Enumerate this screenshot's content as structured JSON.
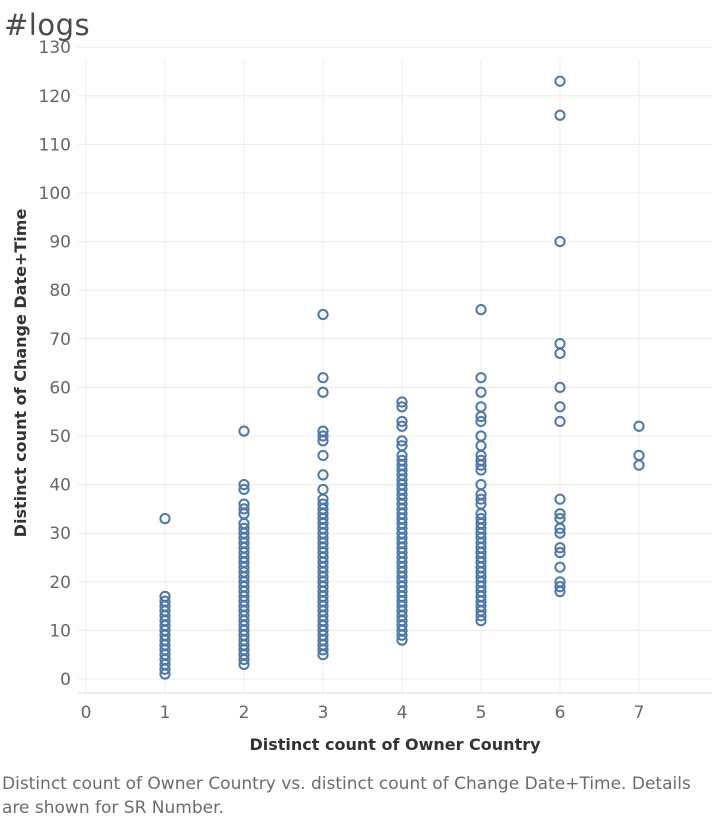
{
  "sheet": {
    "title": "#logs",
    "caption": "Distinct count of Owner Country vs. distinct count of Change Date+Time.  Details are shown for SR Number."
  },
  "colors": {
    "marker": "#4e79a7",
    "grid": "#ececec"
  },
  "chart_data": {
    "type": "scatter",
    "marker": "open-circle",
    "xlabel": "Distinct count of Owner Country",
    "ylabel": "Distinct count of Change Date+Time",
    "xlim": [
      0,
      8
    ],
    "ylim": [
      0,
      130
    ],
    "xticks": [
      0,
      1,
      2,
      3,
      4,
      5,
      6,
      7,
      8
    ],
    "yticks": [
      0,
      10,
      20,
      30,
      40,
      50,
      60,
      70,
      80,
      90,
      100,
      110,
      120,
      130
    ],
    "grid": true,
    "points": [
      {
        "x": 1,
        "y": 33
      },
      {
        "x": 1,
        "y": 17
      },
      {
        "x": 1,
        "y": 16
      },
      {
        "x": 1,
        "y": 15
      },
      {
        "x": 1,
        "y": 14
      },
      {
        "x": 1,
        "y": 13
      },
      {
        "x": 1,
        "y": 12
      },
      {
        "x": 1,
        "y": 11
      },
      {
        "x": 1,
        "y": 10
      },
      {
        "x": 1,
        "y": 9
      },
      {
        "x": 1,
        "y": 8
      },
      {
        "x": 1,
        "y": 7
      },
      {
        "x": 1,
        "y": 6
      },
      {
        "x": 1,
        "y": 5
      },
      {
        "x": 1,
        "y": 4
      },
      {
        "x": 1,
        "y": 3
      },
      {
        "x": 1,
        "y": 2
      },
      {
        "x": 1,
        "y": 1
      },
      {
        "x": 2,
        "y": 51
      },
      {
        "x": 2,
        "y": 40
      },
      {
        "x": 2,
        "y": 39
      },
      {
        "x": 2,
        "y": 36
      },
      {
        "x": 2,
        "y": 35
      },
      {
        "x": 2,
        "y": 34
      },
      {
        "x": 2,
        "y": 32
      },
      {
        "x": 2,
        "y": 31
      },
      {
        "x": 2,
        "y": 30
      },
      {
        "x": 2,
        "y": 29
      },
      {
        "x": 2,
        "y": 28
      },
      {
        "x": 2,
        "y": 27
      },
      {
        "x": 2,
        "y": 26
      },
      {
        "x": 2,
        "y": 25
      },
      {
        "x": 2,
        "y": 24
      },
      {
        "x": 2,
        "y": 23
      },
      {
        "x": 2,
        "y": 22
      },
      {
        "x": 2,
        "y": 21
      },
      {
        "x": 2,
        "y": 20
      },
      {
        "x": 2,
        "y": 19
      },
      {
        "x": 2,
        "y": 18
      },
      {
        "x": 2,
        "y": 17
      },
      {
        "x": 2,
        "y": 16
      },
      {
        "x": 2,
        "y": 15
      },
      {
        "x": 2,
        "y": 14
      },
      {
        "x": 2,
        "y": 13
      },
      {
        "x": 2,
        "y": 12
      },
      {
        "x": 2,
        "y": 11
      },
      {
        "x": 2,
        "y": 10
      },
      {
        "x": 2,
        "y": 9
      },
      {
        "x": 2,
        "y": 8
      },
      {
        "x": 2,
        "y": 7
      },
      {
        "x": 2,
        "y": 6
      },
      {
        "x": 2,
        "y": 5
      },
      {
        "x": 2,
        "y": 4
      },
      {
        "x": 2,
        "y": 3
      },
      {
        "x": 3,
        "y": 75
      },
      {
        "x": 3,
        "y": 62
      },
      {
        "x": 3,
        "y": 59
      },
      {
        "x": 3,
        "y": 51
      },
      {
        "x": 3,
        "y": 50
      },
      {
        "x": 3,
        "y": 49
      },
      {
        "x": 3,
        "y": 46
      },
      {
        "x": 3,
        "y": 42
      },
      {
        "x": 3,
        "y": 39
      },
      {
        "x": 3,
        "y": 37
      },
      {
        "x": 3,
        "y": 36
      },
      {
        "x": 3,
        "y": 35
      },
      {
        "x": 3,
        "y": 34
      },
      {
        "x": 3,
        "y": 33
      },
      {
        "x": 3,
        "y": 32
      },
      {
        "x": 3,
        "y": 31
      },
      {
        "x": 3,
        "y": 30
      },
      {
        "x": 3,
        "y": 29
      },
      {
        "x": 3,
        "y": 28
      },
      {
        "x": 3,
        "y": 27
      },
      {
        "x": 3,
        "y": 26
      },
      {
        "x": 3,
        "y": 25
      },
      {
        "x": 3,
        "y": 24
      },
      {
        "x": 3,
        "y": 23
      },
      {
        "x": 3,
        "y": 22
      },
      {
        "x": 3,
        "y": 21
      },
      {
        "x": 3,
        "y": 20
      },
      {
        "x": 3,
        "y": 19
      },
      {
        "x": 3,
        "y": 18
      },
      {
        "x": 3,
        "y": 17
      },
      {
        "x": 3,
        "y": 16
      },
      {
        "x": 3,
        "y": 15
      },
      {
        "x": 3,
        "y": 14
      },
      {
        "x": 3,
        "y": 13
      },
      {
        "x": 3,
        "y": 12
      },
      {
        "x": 3,
        "y": 11
      },
      {
        "x": 3,
        "y": 10
      },
      {
        "x": 3,
        "y": 9
      },
      {
        "x": 3,
        "y": 8
      },
      {
        "x": 3,
        "y": 7
      },
      {
        "x": 3,
        "y": 6
      },
      {
        "x": 3,
        "y": 5
      },
      {
        "x": 4,
        "y": 57
      },
      {
        "x": 4,
        "y": 56
      },
      {
        "x": 4,
        "y": 53
      },
      {
        "x": 4,
        "y": 52
      },
      {
        "x": 4,
        "y": 49
      },
      {
        "x": 4,
        "y": 48
      },
      {
        "x": 4,
        "y": 46
      },
      {
        "x": 4,
        "y": 45
      },
      {
        "x": 4,
        "y": 44
      },
      {
        "x": 4,
        "y": 43
      },
      {
        "x": 4,
        "y": 42
      },
      {
        "x": 4,
        "y": 41
      },
      {
        "x": 4,
        "y": 40
      },
      {
        "x": 4,
        "y": 39
      },
      {
        "x": 4,
        "y": 38
      },
      {
        "x": 4,
        "y": 37
      },
      {
        "x": 4,
        "y": 36
      },
      {
        "x": 4,
        "y": 35
      },
      {
        "x": 4,
        "y": 34
      },
      {
        "x": 4,
        "y": 33
      },
      {
        "x": 4,
        "y": 32
      },
      {
        "x": 4,
        "y": 31
      },
      {
        "x": 4,
        "y": 30
      },
      {
        "x": 4,
        "y": 29
      },
      {
        "x": 4,
        "y": 28
      },
      {
        "x": 4,
        "y": 27
      },
      {
        "x": 4,
        "y": 26
      },
      {
        "x": 4,
        "y": 25
      },
      {
        "x": 4,
        "y": 24
      },
      {
        "x": 4,
        "y": 23
      },
      {
        "x": 4,
        "y": 22
      },
      {
        "x": 4,
        "y": 21
      },
      {
        "x": 4,
        "y": 20
      },
      {
        "x": 4,
        "y": 19
      },
      {
        "x": 4,
        "y": 18
      },
      {
        "x": 4,
        "y": 17
      },
      {
        "x": 4,
        "y": 16
      },
      {
        "x": 4,
        "y": 15
      },
      {
        "x": 4,
        "y": 14
      },
      {
        "x": 4,
        "y": 13
      },
      {
        "x": 4,
        "y": 12
      },
      {
        "x": 4,
        "y": 11
      },
      {
        "x": 4,
        "y": 10
      },
      {
        "x": 4,
        "y": 9
      },
      {
        "x": 4,
        "y": 8
      },
      {
        "x": 5,
        "y": 76
      },
      {
        "x": 5,
        "y": 62
      },
      {
        "x": 5,
        "y": 59
      },
      {
        "x": 5,
        "y": 56
      },
      {
        "x": 5,
        "y": 54
      },
      {
        "x": 5,
        "y": 53
      },
      {
        "x": 5,
        "y": 50
      },
      {
        "x": 5,
        "y": 48
      },
      {
        "x": 5,
        "y": 46
      },
      {
        "x": 5,
        "y": 45
      },
      {
        "x": 5,
        "y": 44
      },
      {
        "x": 5,
        "y": 43
      },
      {
        "x": 5,
        "y": 40
      },
      {
        "x": 5,
        "y": 38
      },
      {
        "x": 5,
        "y": 37
      },
      {
        "x": 5,
        "y": 36
      },
      {
        "x": 5,
        "y": 34
      },
      {
        "x": 5,
        "y": 33
      },
      {
        "x": 5,
        "y": 32
      },
      {
        "x": 5,
        "y": 31
      },
      {
        "x": 5,
        "y": 30
      },
      {
        "x": 5,
        "y": 29
      },
      {
        "x": 5,
        "y": 28
      },
      {
        "x": 5,
        "y": 27
      },
      {
        "x": 5,
        "y": 26
      },
      {
        "x": 5,
        "y": 25
      },
      {
        "x": 5,
        "y": 24
      },
      {
        "x": 5,
        "y": 23
      },
      {
        "x": 5,
        "y": 22
      },
      {
        "x": 5,
        "y": 21
      },
      {
        "x": 5,
        "y": 20
      },
      {
        "x": 5,
        "y": 19
      },
      {
        "x": 5,
        "y": 18
      },
      {
        "x": 5,
        "y": 17
      },
      {
        "x": 5,
        "y": 16
      },
      {
        "x": 5,
        "y": 15
      },
      {
        "x": 5,
        "y": 14
      },
      {
        "x": 5,
        "y": 13
      },
      {
        "x": 5,
        "y": 12
      },
      {
        "x": 6,
        "y": 123
      },
      {
        "x": 6,
        "y": 116
      },
      {
        "x": 6,
        "y": 90
      },
      {
        "x": 6,
        "y": 69
      },
      {
        "x": 6,
        "y": 67
      },
      {
        "x": 6,
        "y": 60
      },
      {
        "x": 6,
        "y": 56
      },
      {
        "x": 6,
        "y": 53
      },
      {
        "x": 6,
        "y": 37
      },
      {
        "x": 6,
        "y": 34
      },
      {
        "x": 6,
        "y": 33
      },
      {
        "x": 6,
        "y": 31
      },
      {
        "x": 6,
        "y": 30
      },
      {
        "x": 6,
        "y": 27
      },
      {
        "x": 6,
        "y": 26
      },
      {
        "x": 6,
        "y": 23
      },
      {
        "x": 6,
        "y": 20
      },
      {
        "x": 6,
        "y": 19
      },
      {
        "x": 6,
        "y": 18
      },
      {
        "x": 7,
        "y": 52
      },
      {
        "x": 7,
        "y": 46
      },
      {
        "x": 7,
        "y": 44
      }
    ]
  }
}
